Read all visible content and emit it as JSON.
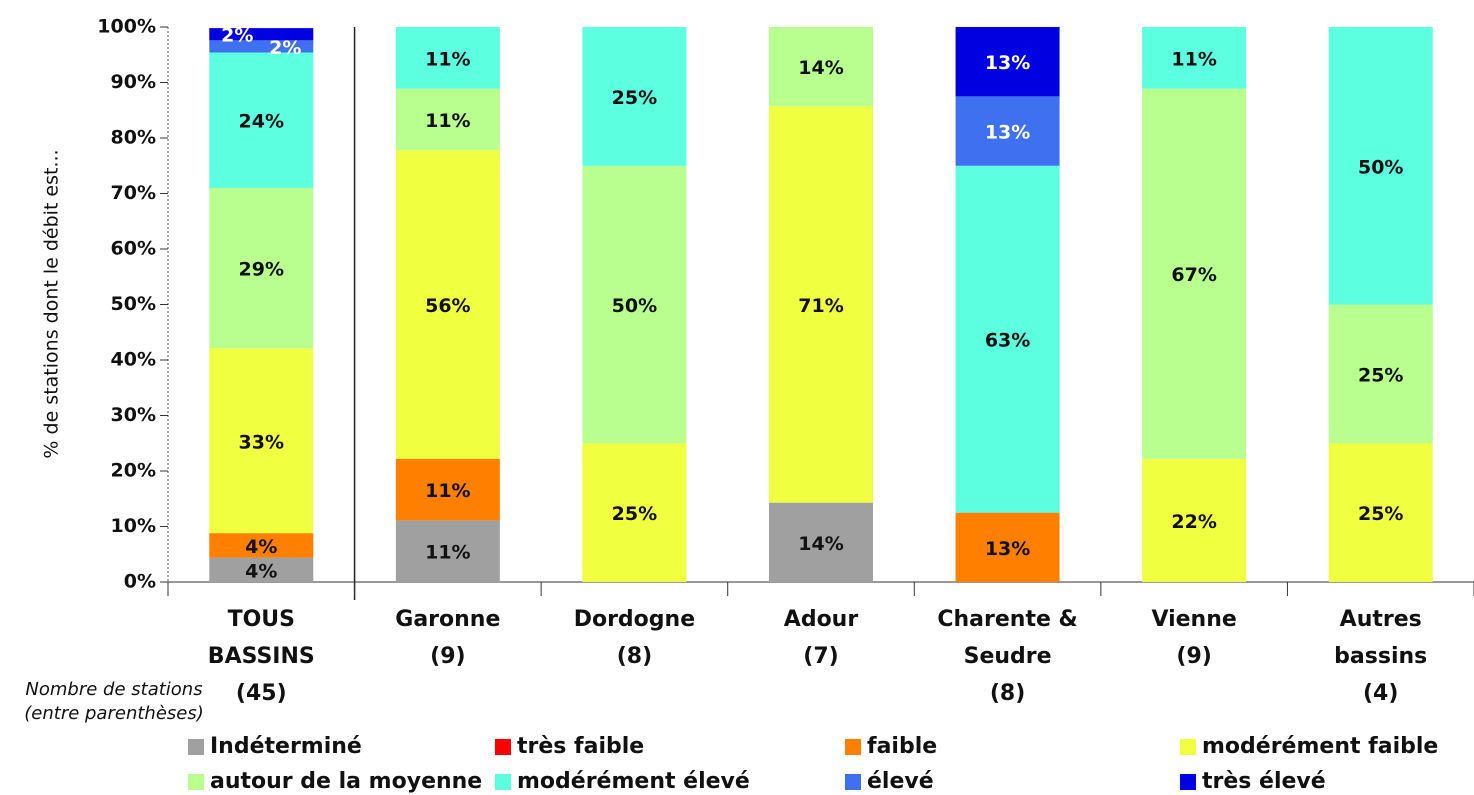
{
  "chart_data": {
    "type": "stacked_bar",
    "ylabel": "% de stations dont le débit est...",
    "annotation": [
      "Nombre de stations",
      "(entre parenthèses)"
    ],
    "categories": [
      [
        "TOUS",
        "BASSINS",
        "(45)"
      ],
      [
        "Garonne",
        "(9)"
      ],
      [
        "Dordogne",
        "(8)"
      ],
      [
        "Adour",
        "(7)"
      ],
      [
        "Charente &",
        "Seudre",
        "(8)"
      ],
      [
        "Vienne",
        "(9)"
      ],
      [
        "Autres",
        "bassins",
        "(4)"
      ]
    ],
    "ylim": [
      0,
      100
    ],
    "yticks": [
      {
        "value": 0,
        "label": "0%"
      },
      {
        "value": 10,
        "label": "10%"
      },
      {
        "value": 20,
        "label": "20%"
      },
      {
        "value": 30,
        "label": "30%"
      },
      {
        "value": 40,
        "label": "40%"
      },
      {
        "value": 50,
        "label": "50%"
      },
      {
        "value": 60,
        "label": "60%"
      },
      {
        "value": 70,
        "label": "70%"
      },
      {
        "value": 80,
        "label": "80%"
      },
      {
        "value": 90,
        "label": "90%"
      },
      {
        "value": 100,
        "label": "100%"
      }
    ],
    "series": [
      {
        "name": "Indéterminé",
        "color": "#a0a0a0",
        "values": [
          4.4,
          11.1,
          null,
          14.3,
          null,
          null,
          null
        ],
        "value_labels": [
          "4%",
          "11%",
          null,
          "14%",
          null,
          null,
          null
        ]
      },
      {
        "name": "très faible",
        "color": "#ff0000",
        "values": [
          null,
          null,
          null,
          null,
          null,
          null,
          null
        ],
        "value_labels": [
          null,
          null,
          null,
          null,
          null,
          null,
          null
        ]
      },
      {
        "name": "faible",
        "color": "#ff7f00",
        "values": [
          4.4,
          11.1,
          null,
          null,
          12.5,
          null,
          null
        ],
        "value_labels": [
          "4%",
          "11%",
          null,
          null,
          "13%",
          null,
          null
        ]
      },
      {
        "name": "modérément faible",
        "color": "#f0ff40",
        "values": [
          33.3,
          55.6,
          25,
          71.4,
          null,
          22.2,
          25
        ],
        "value_labels": [
          "33%",
          "56%",
          "25%",
          "71%",
          null,
          "22%",
          "25%"
        ]
      },
      {
        "name": "autour de la moyenne",
        "color": "#b8ff90",
        "values": [
          28.9,
          11.1,
          50,
          14.3,
          null,
          66.7,
          25
        ],
        "value_labels": [
          "29%",
          "11%",
          "50%",
          "14%",
          null,
          "67%",
          "25%"
        ]
      },
      {
        "name": "modérément élevé",
        "color": "#5cffe0",
        "values": [
          24.4,
          11.1,
          25,
          null,
          62.5,
          11.1,
          50
        ],
        "value_labels": [
          "24%",
          "11%",
          "25%",
          null,
          "63%",
          "11%",
          "50%"
        ]
      },
      {
        "name": "élevé",
        "color": "#3f70f0",
        "values": [
          2.2,
          null,
          null,
          null,
          12.5,
          null,
          null
        ],
        "value_labels": [
          "2%",
          null,
          null,
          null,
          "13%",
          null,
          null
        ]
      },
      {
        "name": "très élevé",
        "color": "#0000e0",
        "values": [
          2.2,
          null,
          null,
          null,
          12.5,
          null,
          null
        ],
        "value_labels": [
          "2%",
          null,
          null,
          null,
          "13%",
          null,
          null
        ]
      }
    ]
  }
}
